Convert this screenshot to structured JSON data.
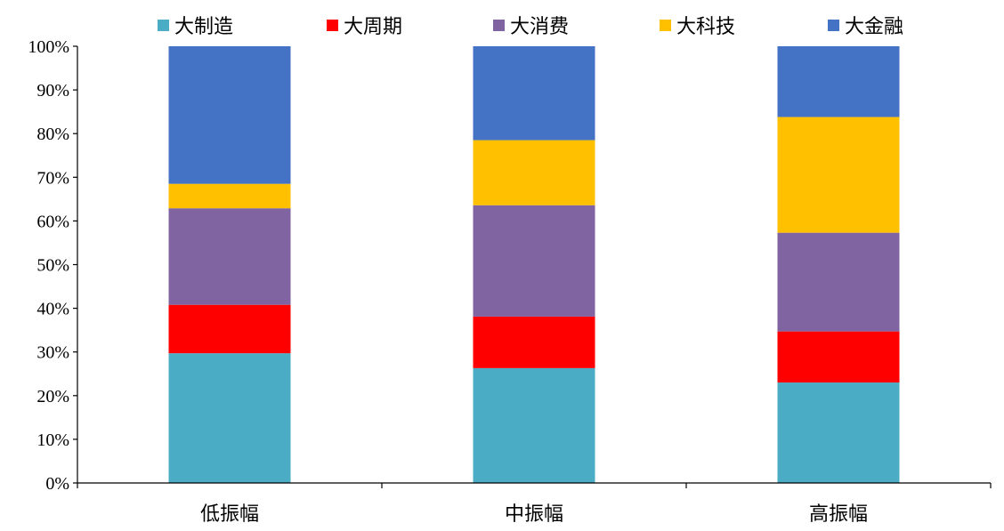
{
  "chart_data": {
    "type": "bar",
    "stacked": true,
    "categories": [
      "低振幅",
      "中振幅",
      "高振幅"
    ],
    "series": [
      {
        "name": "大制造",
        "color": "#4BACC6",
        "values": [
          29.7,
          26.3,
          23.0
        ]
      },
      {
        "name": "大周期",
        "color": "#FF0000",
        "values": [
          11.1,
          11.8,
          11.7
        ]
      },
      {
        "name": "大消费",
        "color": "#8064A2",
        "values": [
          22.1,
          25.5,
          22.6
        ]
      },
      {
        "name": "大科技",
        "color": "#FFC000",
        "values": [
          5.6,
          14.9,
          26.5
        ]
      },
      {
        "name": "大金融",
        "color": "#4472C4",
        "values": [
          31.5,
          21.5,
          16.2
        ]
      }
    ],
    "ylim": [
      0,
      100
    ],
    "yticks": [
      "0%",
      "10%",
      "20%",
      "30%",
      "40%",
      "50%",
      "60%",
      "70%",
      "80%",
      "90%",
      "100%"
    ],
    "title": "",
    "xlabel": "",
    "ylabel": "",
    "legend_position": "top",
    "grid": false
  }
}
